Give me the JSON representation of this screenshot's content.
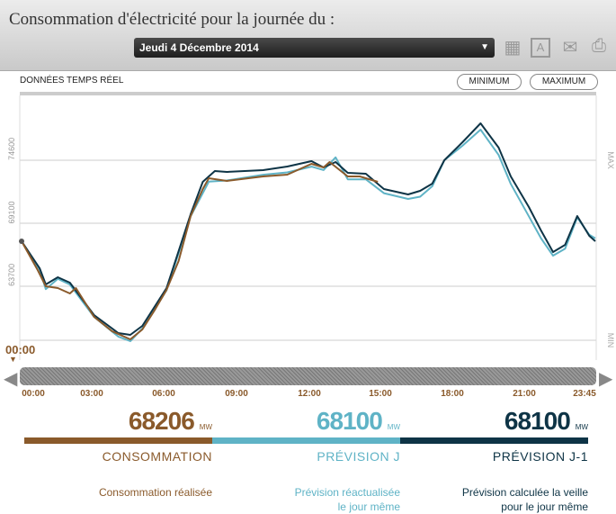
{
  "header": {
    "title": "Consommation d'électricité pour la journée du :",
    "date": "Jeudi 4 Décembre 2014",
    "icons": [
      "calendar-icon",
      "calendar-a-icon",
      "send-mail-icon",
      "print-icon"
    ]
  },
  "subheader": {
    "label": "DONNÉES TEMPS RÉEL",
    "minimum": "MINIMUM",
    "maximum": "MAXIMUM"
  },
  "colors": {
    "consommation": "#8a5a2b",
    "prevision_j": "#5fb3c6",
    "prevision_j1": "#0e3446"
  },
  "chart_data": {
    "type": "line",
    "y_ticks": [
      63700,
      69100,
      74600
    ],
    "y_tick_labels": [
      "63700",
      "69100",
      "74600"
    ],
    "max_label": "MAX",
    "min_label": "MIN",
    "ylim": [
      58300,
      79500
    ],
    "xlim": [
      "00:00",
      "23:45"
    ],
    "grid": true,
    "series": [
      {
        "key": "consommation",
        "points": [
          [
            "00:00",
            67543
          ],
          [
            "00:40",
            65051
          ],
          [
            "01:00",
            63650
          ],
          [
            "01:30",
            63494
          ],
          [
            "02:00",
            63027
          ],
          [
            "02:15",
            63494
          ],
          [
            "03:00",
            61003
          ],
          [
            "03:45",
            59757
          ],
          [
            "04:30",
            59056
          ],
          [
            "05:00",
            59913
          ],
          [
            "05:30",
            61548
          ],
          [
            "06:00",
            63338
          ],
          [
            "06:30",
            65830
          ],
          [
            "07:00",
            69723
          ],
          [
            "07:30",
            72059
          ],
          [
            "07:45",
            72993
          ],
          [
            "08:30",
            72760
          ],
          [
            "10:00",
            73149
          ],
          [
            "11:00",
            73305
          ],
          [
            "12:00",
            74239
          ],
          [
            "12:30",
            73927
          ],
          [
            "12:45",
            74394
          ],
          [
            "13:30",
            73149
          ],
          [
            "14:00",
            73149
          ],
          [
            "14:45",
            72681
          ]
        ]
      },
      {
        "key": "prevision_j",
        "points": [
          [
            "00:00",
            67543
          ],
          [
            "00:45",
            65100
          ],
          [
            "01:00",
            63400
          ],
          [
            "01:30",
            64300
          ],
          [
            "02:00",
            63800
          ],
          [
            "03:00",
            61000
          ],
          [
            "04:00",
            59300
          ],
          [
            "04:30",
            58900
          ],
          [
            "05:00",
            60000
          ],
          [
            "06:00",
            63300
          ],
          [
            "07:00",
            69700
          ],
          [
            "07:45",
            72700
          ],
          [
            "08:30",
            72800
          ],
          [
            "10:00",
            73300
          ],
          [
            "11:00",
            73500
          ],
          [
            "12:00",
            74000
          ],
          [
            "12:30",
            73700
          ],
          [
            "13:00",
            74800
          ],
          [
            "13:30",
            72900
          ],
          [
            "14:15",
            72900
          ],
          [
            "15:00",
            71700
          ],
          [
            "16:00",
            71200
          ],
          [
            "16:30",
            71400
          ],
          [
            "17:00",
            72300
          ],
          [
            "17:30",
            74550
          ],
          [
            "18:15",
            75800
          ],
          [
            "19:00",
            77200
          ],
          [
            "19:45",
            75000
          ],
          [
            "20:15",
            72500
          ],
          [
            "21:00",
            69700
          ],
          [
            "21:30",
            67800
          ],
          [
            "22:00",
            66300
          ],
          [
            "22:30",
            66900
          ],
          [
            "23:00",
            69600
          ],
          [
            "23:30",
            68100
          ],
          [
            "23:45",
            67800
          ]
        ]
      },
      {
        "key": "prevision_j1",
        "points": [
          [
            "00:00",
            67543
          ],
          [
            "00:45",
            65206
          ],
          [
            "01:00",
            63805
          ],
          [
            "01:30",
            64428
          ],
          [
            "02:00",
            63961
          ],
          [
            "03:00",
            61158
          ],
          [
            "04:00",
            59601
          ],
          [
            "04:30",
            59445
          ],
          [
            "05:00",
            60224
          ],
          [
            "06:00",
            63494
          ],
          [
            "07:00",
            69879
          ],
          [
            "07:30",
            72681
          ],
          [
            "08:00",
            73616
          ],
          [
            "08:30",
            73538
          ],
          [
            "10:00",
            73694
          ],
          [
            "11:00",
            74005
          ],
          [
            "12:00",
            74472
          ],
          [
            "12:30",
            73927
          ],
          [
            "13:00",
            74394
          ],
          [
            "13:30",
            73460
          ],
          [
            "14:15",
            73382
          ],
          [
            "15:00",
            72059
          ],
          [
            "16:00",
            71592
          ],
          [
            "16:30",
            71904
          ],
          [
            "17:00",
            72526
          ],
          [
            "17:30",
            74550
          ],
          [
            "18:15",
            76107
          ],
          [
            "19:00",
            77742
          ],
          [
            "19:45",
            75640
          ],
          [
            "20:15",
            73149
          ],
          [
            "21:00",
            70501
          ],
          [
            "21:30",
            68477
          ],
          [
            "22:00",
            66608
          ],
          [
            "22:30",
            67231
          ],
          [
            "23:00",
            69723
          ],
          [
            "23:30",
            68010
          ],
          [
            "23:45",
            67543
          ]
        ]
      }
    ]
  },
  "timeline": {
    "current": "00:00",
    "ticks": [
      "00:00",
      "03:00",
      "06:00",
      "09:00",
      "12:00",
      "15:00",
      "18:00",
      "21:00",
      "23:45"
    ]
  },
  "summary": [
    {
      "value": "68206",
      "unit": "MW",
      "label": "CONSOMMATION",
      "desc1": "Consommation réalisée",
      "desc2": ""
    },
    {
      "value": "68100",
      "unit": "MW",
      "label": "PRÉVISION J",
      "desc1": "Prévision réactualisée",
      "desc2": "le jour même"
    },
    {
      "value": "68100",
      "unit": "MW",
      "label": "PRÉVISION J-1",
      "desc1": "Prévision calculée la veille",
      "desc2": "pour le jour même"
    }
  ]
}
